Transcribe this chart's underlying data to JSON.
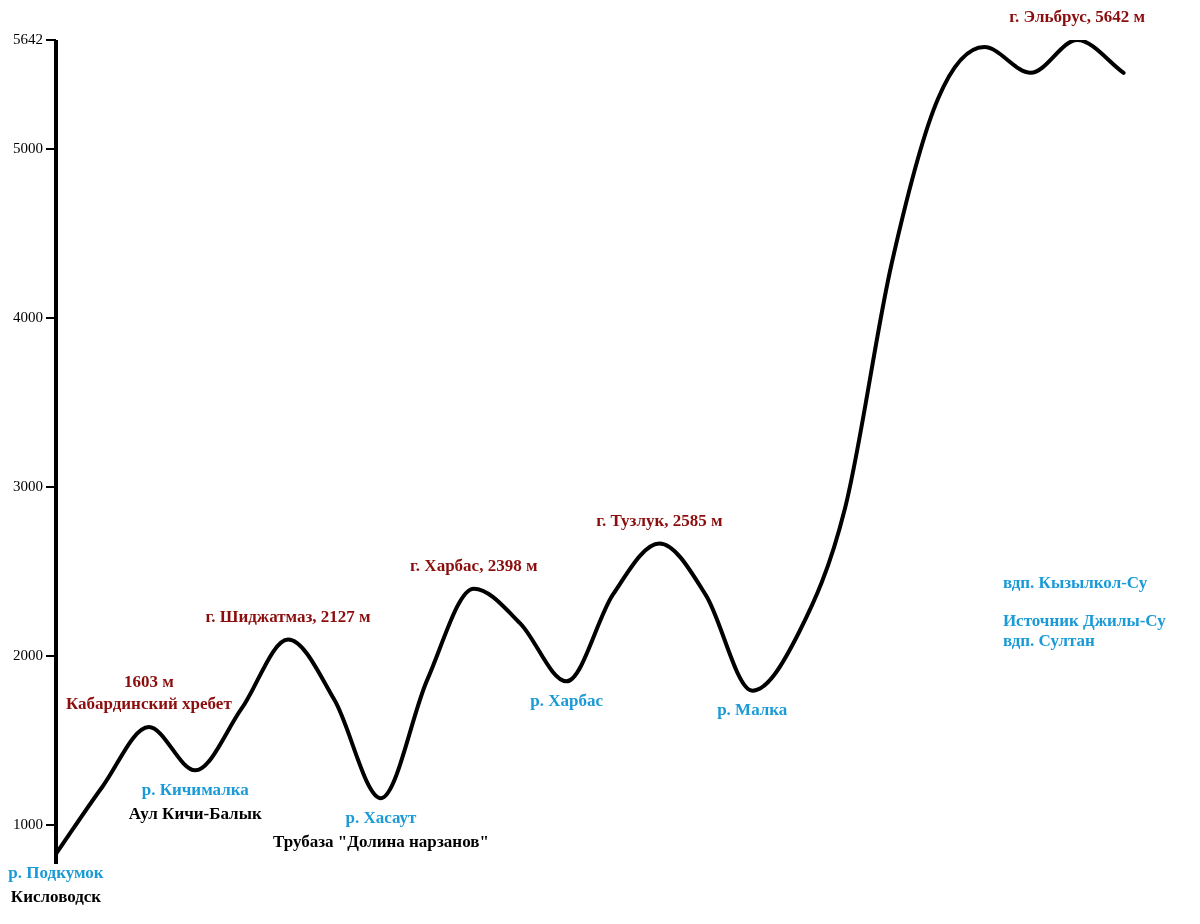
{
  "chart_data": {
    "type": "line",
    "categories": [
      null,
      null,
      null,
      null,
      null,
      null,
      null,
      null,
      null,
      null,
      null,
      null,
      null,
      null,
      null,
      null,
      null,
      null,
      null,
      null,
      null,
      null,
      null,
      null,
      null
    ],
    "series": [
      {
        "color": "#000000",
        "values": [
          830,
          1227,
          1580,
          1324,
          1690,
          2097,
          1739,
          1159,
          1860,
          2398,
          2193,
          1850,
          2364,
          2665,
          2360,
          1795,
          2136,
          2875,
          4316,
          5293,
          5600,
          5448,
          5642,
          5448,
          null
        ]
      }
    ],
    "ylim": [
      770,
      5642
    ],
    "yticks": [
      1000,
      2000,
      3000,
      4000,
      5000,
      5642
    ],
    "tick_labels": "y",
    "grid": false,
    "legend": false,
    "marker": "none",
    "line_style": "solid",
    "annotations": [
      {
        "text": "р. Подкумок",
        "y": 830
      },
      {
        "text": "Кисловодск",
        "y": 830
      },
      {
        "text": "1603 м",
        "y": 1580
      },
      {
        "text": "Кабардинский хребет",
        "y": 1580
      },
      {
        "text": "р. Кичималка",
        "y": 1324
      },
      {
        "text": "Аул Кичи-Балык",
        "y": 1324
      },
      {
        "text": "г. Шиджатмаз, 2127 м",
        "y": 2097
      },
      {
        "text": "р. Хасаут",
        "y": 1159
      },
      {
        "text": "Трубаза \"Долина нарзанов\"",
        "y": 1159
      },
      {
        "text": "г. Харбас, 2398 м",
        "y": 2398
      },
      {
        "text": "р. Харбас",
        "y": 1850
      },
      {
        "text": "г. Тузлук, 2585 м",
        "y": 2665
      },
      {
        "text": "р. Малка",
        "y": 1795
      },
      "вдп. Кызылкол-Су",
      "Источник Джилы-Су",
      "вдп. Султан",
      {
        "text": "г. Эльбрус, 5642 м",
        "y": 5642
      }
    ]
  }
}
